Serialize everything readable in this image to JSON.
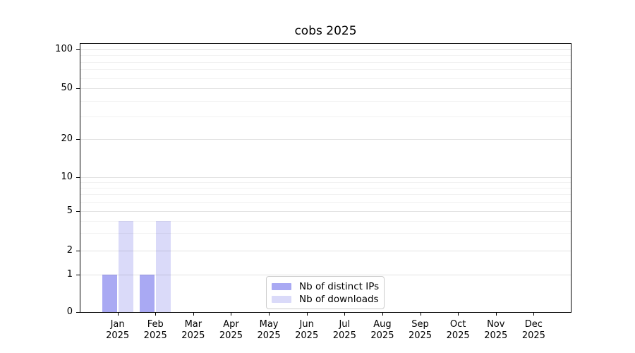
{
  "chart_data": {
    "type": "bar",
    "title": "cobs 2025",
    "categories": [
      "Jan 2025",
      "Feb 2025",
      "Mar 2025",
      "Apr 2025",
      "May 2025",
      "Jun 2025",
      "Jul 2025",
      "Aug 2025",
      "Sep 2025",
      "Oct 2025",
      "Nov 2025",
      "Dec 2025"
    ],
    "series": [
      {
        "name": "Nb of distinct IPs",
        "color": "#a9a9f3",
        "values": [
          1,
          1,
          0,
          0,
          0,
          0,
          0,
          0,
          0,
          0,
          0,
          0
        ]
      },
      {
        "name": "Nb of downloads",
        "color": "#dadaf9",
        "values": [
          4,
          4,
          0,
          0,
          0,
          0,
          0,
          0,
          0,
          0,
          0,
          0
        ]
      }
    ],
    "yticks": [
      0,
      1,
      2,
      5,
      10,
      20,
      50,
      100
    ],
    "ylim": [
      0,
      110
    ],
    "yscale": "log-like (linear 0-1, log above)",
    "grid": true,
    "legend_position": "lower center",
    "axis_color": "#000000",
    "background_color": "#ffffff"
  }
}
